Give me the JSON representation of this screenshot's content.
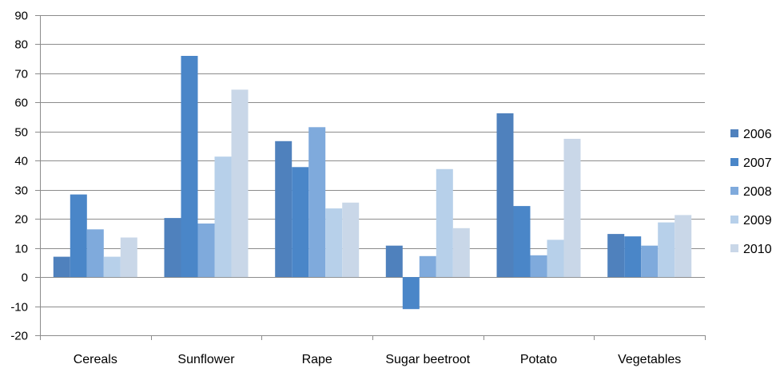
{
  "chart_data": {
    "type": "bar",
    "categories": [
      "Cereals",
      "Sunflower",
      "Rape",
      "Sugar beetroot",
      "Potato",
      "Vegetables"
    ],
    "series": [
      {
        "name": "2006",
        "color": "#4F81BD",
        "values": [
          7,
          20.3,
          46.7,
          10.8,
          56.3,
          14.8
        ]
      },
      {
        "name": "2007",
        "color": "#4A86C8",
        "values": [
          28.4,
          76,
          37.8,
          -11,
          24.4,
          14
        ]
      },
      {
        "name": "2008",
        "color": "#7FAADC",
        "values": [
          16.4,
          18.4,
          51.5,
          7.2,
          7.5,
          10.8
        ]
      },
      {
        "name": "2009",
        "color": "#B7D0EA",
        "values": [
          7,
          41.4,
          23.6,
          37.1,
          12.8,
          18.8
        ]
      },
      {
        "name": "2010",
        "color": "#C9D7E8",
        "values": [
          13.6,
          64.4,
          25.6,
          16.8,
          47.5,
          21.3
        ]
      }
    ],
    "ylim": [
      -20,
      90
    ],
    "yticks": [
      -20,
      -10,
      0,
      10,
      20,
      30,
      40,
      50,
      60,
      70,
      80,
      90
    ],
    "grid": true,
    "legend_position": "right",
    "xlabel": "",
    "ylabel": ""
  }
}
